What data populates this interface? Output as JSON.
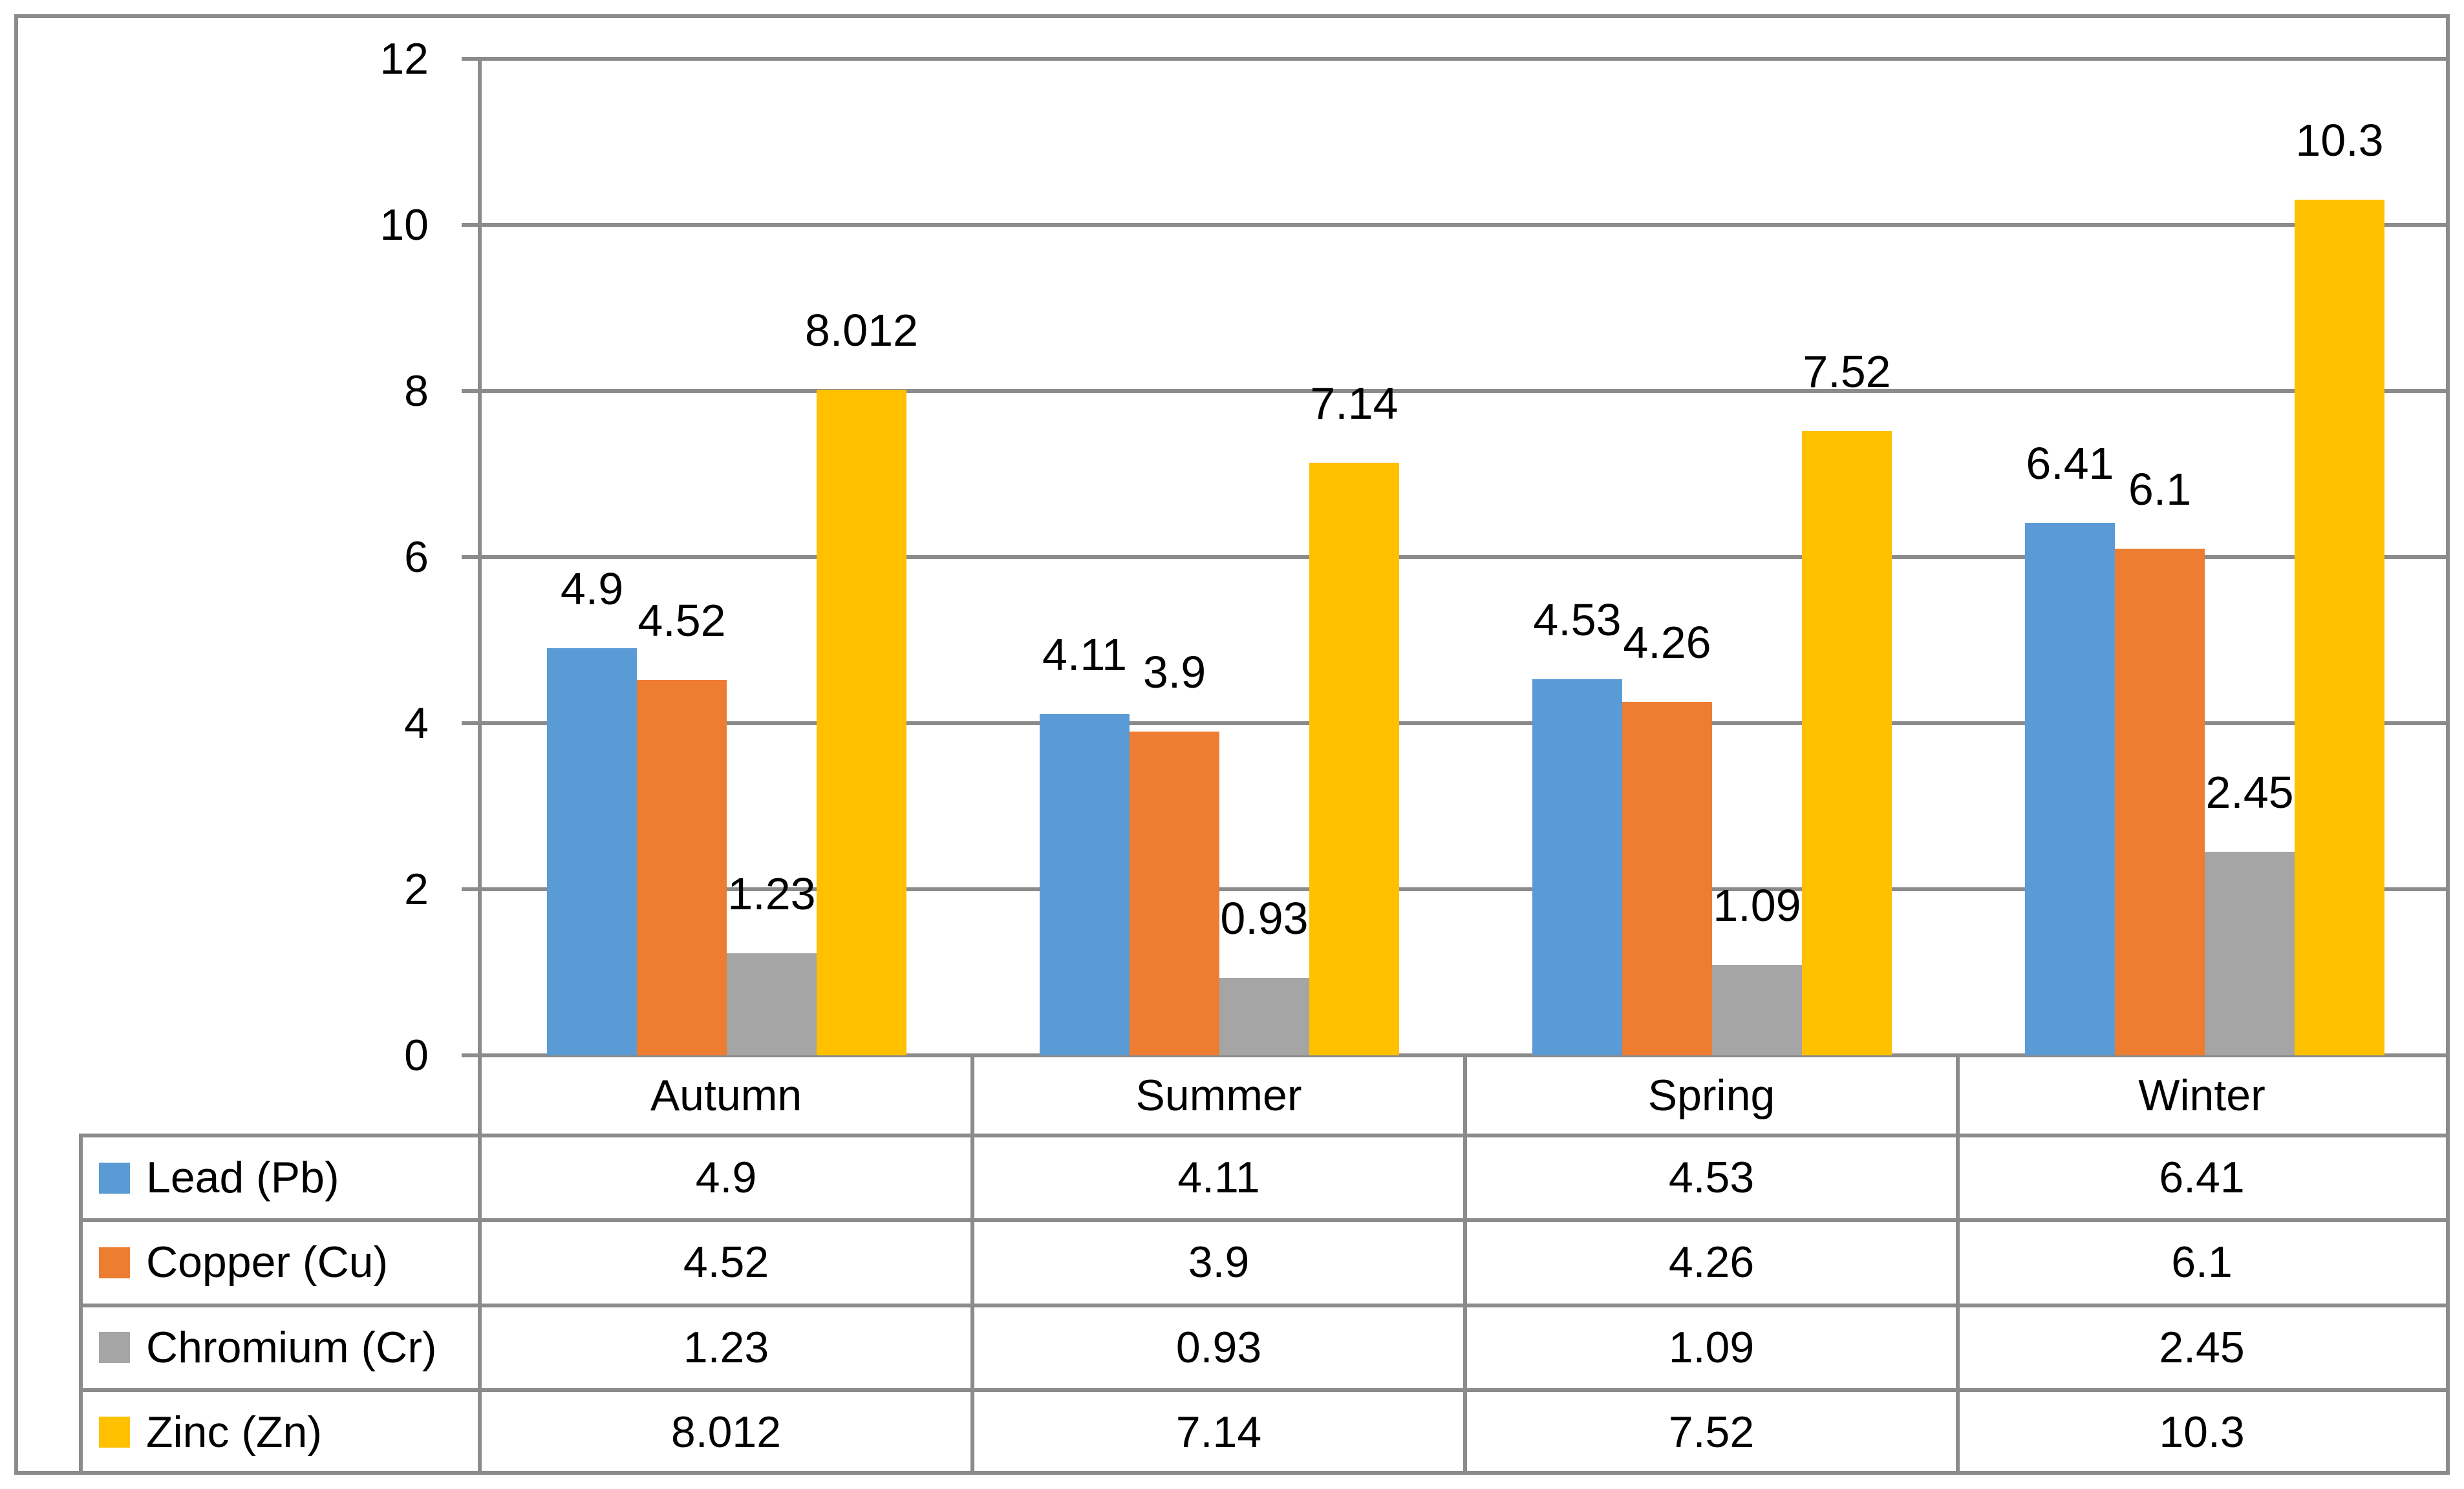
{
  "chart_data": {
    "type": "bar",
    "title": "",
    "xlabel": "",
    "ylabel": "",
    "categories": [
      "Autumn",
      "Summer",
      "Spring",
      "Winter"
    ],
    "series": [
      {
        "name": "Lead (Pb)",
        "color": "#5B9BD5",
        "values": [
          4.9,
          4.11,
          4.53,
          6.41
        ],
        "labels": [
          "4.9",
          "4.11",
          "4.53",
          "6.41"
        ]
      },
      {
        "name": "Copper (Cu)",
        "color": "#ED7D31",
        "values": [
          4.52,
          3.9,
          4.26,
          6.1
        ],
        "labels": [
          "4.52",
          "3.9",
          "4.26",
          "6.1"
        ]
      },
      {
        "name": "Chromium (Cr)",
        "color": "#A5A5A5",
        "values": [
          1.23,
          0.93,
          1.09,
          2.45
        ],
        "labels": [
          "1.23",
          "0.93",
          "1.09",
          "2.45"
        ]
      },
      {
        "name": "Zinc (Zn)",
        "color": "#FFC000",
        "values": [
          8.012,
          7.14,
          7.52,
          10.3
        ],
        "labels": [
          "8.012",
          "7.14",
          "7.52",
          "10.3"
        ]
      }
    ],
    "ylim": [
      0,
      12
    ],
    "yticks": [
      0,
      2,
      4,
      6,
      8,
      10,
      12
    ],
    "ytick_labels": [
      "0",
      "2",
      "4",
      "6",
      "8",
      "10",
      "12"
    ],
    "grid": true,
    "data_labels": true,
    "legend_position": "data-table-left"
  },
  "colors": {
    "gridline": "#8B8B8B",
    "border": "#8B8B8B",
    "text": "#000000",
    "background": "#FFFFFF"
  }
}
